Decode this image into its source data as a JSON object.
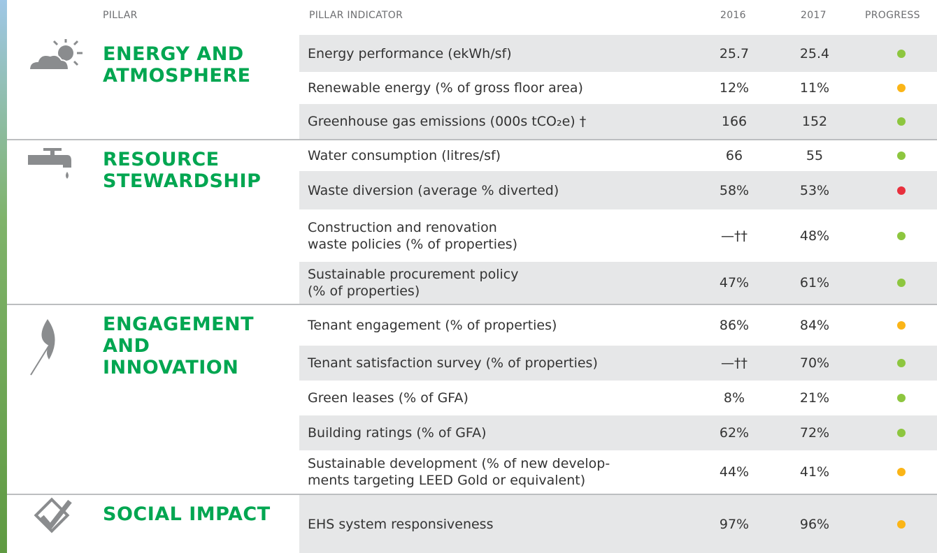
{
  "table": {
    "header": [
      "PILLAR",
      "PILLAR INDICATOR",
      "2016",
      "2017",
      "PROGRESS"
    ],
    "groups": [
      {
        "pillar": "ENERGY AND\nATMOSPHERE",
        "rows": [
          {
            "indicator": "Energy performance (ekWh/sf)",
            "y2016": "25.7",
            "y2017": "25.4",
            "progress": "#8dc63f"
          },
          {
            "indicator": "Renewable energy (% of gross floor area)",
            "y2016": "12%",
            "y2017": "11%",
            "progress": "#fbb517"
          },
          {
            "indicator": "Greenhouse gas emissions (000s tCO₂e) †",
            "y2016": "166",
            "y2017": "152",
            "progress": "#8dc63f"
          }
        ]
      },
      {
        "pillar": "RESOURCE\nSTEWARDSHIP",
        "rows": [
          {
            "indicator": "Water consumption (litres/sf)",
            "y2016": "66",
            "y2017": "55",
            "progress": "#8dc63f"
          },
          {
            "indicator": "Waste diversion (average % diverted)",
            "y2016": "58%",
            "y2017": "53%",
            "progress": "#e8303d"
          },
          {
            "indicator": "Construction and renovation\nwaste policies (% of properties)",
            "y2016": "—††",
            "y2017": "48%",
            "progress": "#8dc63f"
          },
          {
            "indicator": "Sustainable procurement policy\n(% of properties)",
            "y2016": "47%",
            "y2017": "61%",
            "progress": "#8dc63f"
          }
        ]
      },
      {
        "pillar": "ENGAGEMENT\nAND\nINNOVATION",
        "rows": [
          {
            "indicator": "Tenant engagement (% of properties)",
            "y2016": "86%",
            "y2017": "84%",
            "progress": "#fbb517"
          },
          {
            "indicator": "Tenant satisfaction survey (% of properties)",
            "y2016": "—††",
            "y2017": "70%",
            "progress": "#8dc63f"
          },
          {
            "indicator": "Green leases (% of GFA)",
            "y2016": "8%",
            "y2017": "21%",
            "progress": "#8dc63f"
          },
          {
            "indicator": "Building ratings (% of GFA)",
            "y2016": "62%",
            "y2017": "72%",
            "progress": "#8dc63f"
          },
          {
            "indicator": "Sustainable development (% of new develop-\nments targeting LEED Gold or equivalent)",
            "y2016": "44%",
            "y2017": "41%",
            "progress": "#fbb517"
          }
        ]
      },
      {
        "pillar": "SOCIAL IMPACT",
        "rows": [
          {
            "indicator": "EHS system responsiveness",
            "y2016": "97%",
            "y2017": "96%",
            "progress": "#fbb517"
          }
        ]
      }
    ]
  }
}
